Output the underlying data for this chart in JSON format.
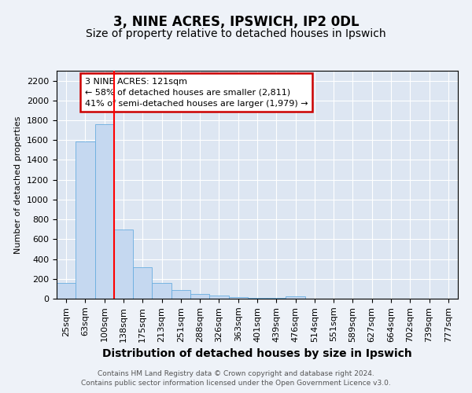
{
  "title1": "3, NINE ACRES, IPSWICH, IP2 0DL",
  "title2": "Size of property relative to detached houses in Ipswich",
  "xlabel": "Distribution of detached houses by size in Ipswich",
  "ylabel": "Number of detached properties",
  "bar_labels": [
    "25sqm",
    "63sqm",
    "100sqm",
    "138sqm",
    "175sqm",
    "213sqm",
    "251sqm",
    "288sqm",
    "326sqm",
    "363sqm",
    "401sqm",
    "439sqm",
    "476sqm",
    "514sqm",
    "551sqm",
    "589sqm",
    "627sqm",
    "664sqm",
    "702sqm",
    "739sqm",
    "777sqm"
  ],
  "bar_values": [
    160,
    1590,
    1760,
    700,
    315,
    155,
    85,
    50,
    30,
    15,
    10,
    5,
    20,
    0,
    0,
    0,
    0,
    0,
    0,
    0,
    0
  ],
  "bar_color": "#c5d8f0",
  "bar_edge_color": "#6aaee0",
  "red_line_x": 3.0,
  "annotation_text": "3 NINE ACRES: 121sqm\n← 58% of detached houses are smaller (2,811)\n41% of semi-detached houses are larger (1,979) →",
  "annotation_box_color": "#ffffff",
  "annotation_box_edge": "#cc0000",
  "footer1": "Contains HM Land Registry data © Crown copyright and database right 2024.",
  "footer2": "Contains public sector information licensed under the Open Government Licence v3.0.",
  "ylim": [
    0,
    2300
  ],
  "yticks": [
    0,
    200,
    400,
    600,
    800,
    1000,
    1200,
    1400,
    1600,
    1800,
    2000,
    2200
  ],
  "background_color": "#eef2f8",
  "plot_bg_color": "#dde6f2",
  "title1_fontsize": 12,
  "title2_fontsize": 10,
  "xlabel_fontsize": 10,
  "ylabel_fontsize": 8,
  "tick_fontsize": 8,
  "footer_fontsize": 6.5,
  "annotation_fontsize": 8
}
